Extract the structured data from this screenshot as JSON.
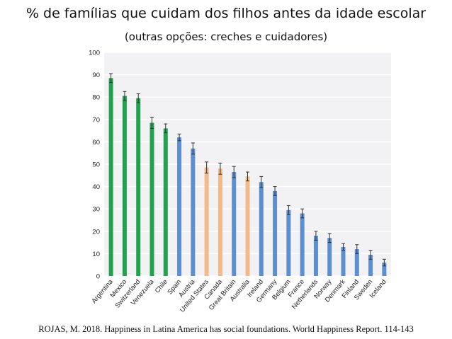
{
  "title": "% de famílias que cuidam dos filhos antes da idade escolar",
  "subtitle": "(outras opções: creches e cuidadores)",
  "source": "ROJAS, M. 2018. Happiness in Latina America has social foundations. World Happiness Report. 114-143",
  "colors": {
    "green": "#22a14f",
    "blue": "#5b8fd0",
    "orange": "#f2b98a",
    "plot_bg": "#f2f2f4",
    "grid": "#ffffff",
    "error": "#333333"
  },
  "chart_data": {
    "type": "bar",
    "title": "",
    "xlabel": "",
    "ylabel": "",
    "ylim": [
      0,
      100
    ],
    "yticks": [
      0,
      10,
      20,
      30,
      40,
      50,
      60,
      70,
      80,
      90,
      100
    ],
    "grid": true,
    "error_bars": true,
    "categories": [
      "Argentina",
      "Mexico",
      "Switzerland",
      "Venezuela",
      "Chile",
      "Spain",
      "Austria",
      "United States",
      "Canada",
      "Great Britain",
      "Australia",
      "Ireland",
      "Germany",
      "Belgium",
      "France",
      "Netherlands",
      "Norway",
      "Denmark",
      "Finland",
      "Sweden",
      "Iceland"
    ],
    "values": [
      88.5,
      80.5,
      79.5,
      68.5,
      66,
      62,
      57,
      48.5,
      48,
      46.5,
      44.5,
      42,
      38,
      29.5,
      28,
      18,
      17,
      13,
      12,
      9.5,
      6
    ],
    "errors": [
      2,
      2,
      2,
      2.5,
      2,
      1.5,
      2.5,
      2.5,
      2.5,
      2.5,
      2,
      2.5,
      2,
      2,
      2,
      2,
      2,
      1.5,
      2,
      2,
      1.5
    ],
    "bar_colors": [
      "green",
      "green",
      "green",
      "green",
      "green",
      "blue",
      "blue",
      "orange",
      "orange",
      "blue",
      "orange",
      "blue",
      "blue",
      "blue",
      "blue",
      "blue",
      "blue",
      "blue",
      "blue",
      "blue",
      "blue"
    ]
  }
}
